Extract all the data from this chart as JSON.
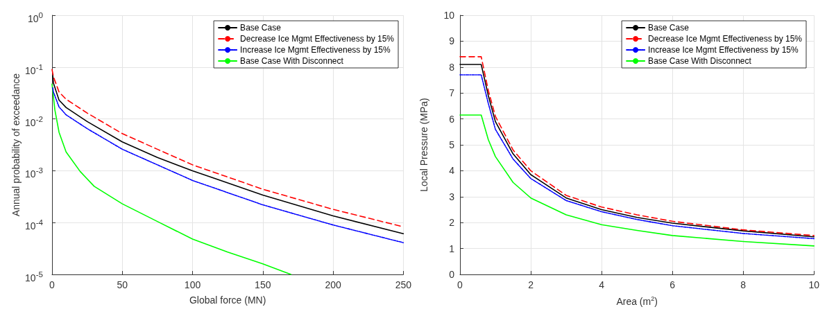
{
  "chart_data": [
    {
      "type": "line",
      "xlabel": "Global force (MN)",
      "ylabel": "Annual probability of exceedance",
      "log": "y",
      "xlim": [
        0,
        250
      ],
      "xticks": [
        0,
        50,
        100,
        150,
        200,
        250
      ],
      "ylim": [
        1e-05,
        1
      ],
      "yticks": [
        {
          "value": 1e-05,
          "label": "10$^{-5}$"
        },
        {
          "value": 0.0001,
          "label": "10$^{-4}$"
        },
        {
          "value": 0.001,
          "label": "10$^{-3}$"
        },
        {
          "value": 0.01,
          "label": "10$^{-2}$"
        },
        {
          "value": 0.1,
          "label": "10$^{-1}$"
        },
        {
          "value": 1,
          "label": "10$^{0}$"
        }
      ],
      "grid": true,
      "legend": "top right",
      "marker": "none",
      "series": [
        {
          "name": "Base Case",
          "color": "#000000",
          "line_style": "solid",
          "x": [
            0.5,
            1,
            5,
            10,
            25,
            50,
            75,
            100,
            150,
            200,
            250
          ],
          "values": [
            0.07,
            0.049,
            0.023,
            0.0166,
            0.0089,
            0.0036,
            0.0018,
            0.001,
            0.00034,
            0.000135,
            6.1e-05
          ]
        },
        {
          "name": "Decrease Ice Mgmt Effectiveness by 15%",
          "color": "#ff0000",
          "line_style": "dashed",
          "x": [
            0,
            1,
            5,
            10,
            25,
            50,
            75,
            100,
            150,
            200,
            250
          ],
          "values": [
            0.09,
            0.065,
            0.033,
            0.024,
            0.013,
            0.0052,
            0.0026,
            0.0013,
            0.00044,
            0.00018,
            8.3e-05
          ]
        },
        {
          "name": "Increase Ice Mgmt Effectiveness by 15%",
          "color": "#0000ff",
          "line_style": "dashdot",
          "x": [
            0.5,
            1,
            5,
            10,
            25,
            50,
            75,
            100,
            150,
            200,
            250
          ],
          "values": [
            0.04,
            0.033,
            0.017,
            0.012,
            0.0065,
            0.0026,
            0.0013,
            0.00065,
            0.00022,
            9e-05,
            4.1e-05
          ]
        },
        {
          "name": "Base Case With Disconnect",
          "color": "#00ff00",
          "line_style": "solid",
          "x": [
            0,
            2,
            5,
            10,
            20,
            30,
            50,
            75,
            100,
            125,
            150,
            170
          ],
          "values": [
            0.047,
            0.015,
            0.0055,
            0.0023,
            0.00097,
            0.0005,
            0.00023,
            0.000105,
            4.8e-05,
            2.7e-05,
            1.6e-05,
            1e-05
          ]
        }
      ]
    },
    {
      "type": "line",
      "xlabel": "Area (m$^{2}$)",
      "ylabel": "Local Pressure (MPa)",
      "xlim": [
        0,
        10
      ],
      "xticks": [
        0,
        2,
        4,
        6,
        8,
        10
      ],
      "ylim": [
        0,
        10
      ],
      "yticks": [
        0,
        1,
        2,
        3,
        4,
        5,
        6,
        7,
        8,
        9,
        10
      ],
      "grid": true,
      "legend": "top right",
      "marker": "none",
      "series": [
        {
          "name": "Base Case",
          "color": "#000000",
          "line_style": "solid",
          "x": [
            0,
            0.6,
            0.8,
            1,
            1.5,
            2,
            3,
            4,
            5,
            6,
            8,
            10
          ],
          "values": [
            8.1,
            8.1,
            6.9,
            5.9,
            4.65,
            3.85,
            2.95,
            2.5,
            2.2,
            1.98,
            1.68,
            1.45
          ]
        },
        {
          "name": "Decrease Ice Mgmt Effectiveness by 15%",
          "color": "#ff0000",
          "line_style": "dashed",
          "x": [
            0,
            0.6,
            0.8,
            1,
            1.5,
            2,
            3,
            4,
            5,
            6,
            8,
            10
          ],
          "values": [
            8.4,
            8.4,
            7.1,
            6.1,
            4.8,
            4.0,
            3.05,
            2.6,
            2.3,
            2.05,
            1.72,
            1.5
          ]
        },
        {
          "name": "Increase Ice Mgmt Effectiveness by 15%",
          "color": "#0000ff",
          "line_style": "dashdot",
          "x": [
            0,
            0.6,
            0.8,
            1,
            1.5,
            2,
            3,
            4,
            5,
            6,
            8,
            10
          ],
          "values": [
            7.7,
            7.7,
            6.6,
            5.6,
            4.45,
            3.7,
            2.85,
            2.42,
            2.12,
            1.88,
            1.58,
            1.38
          ]
        },
        {
          "name": "Base Case With Disconnect",
          "color": "#00ff00",
          "line_style": "solid",
          "x": [
            0,
            0.6,
            0.8,
            1,
            1.5,
            2,
            3,
            4,
            5,
            6,
            8,
            10
          ],
          "values": [
            6.15,
            6.15,
            5.2,
            4.55,
            3.55,
            2.95,
            2.3,
            1.92,
            1.7,
            1.5,
            1.27,
            1.1
          ]
        }
      ]
    }
  ]
}
